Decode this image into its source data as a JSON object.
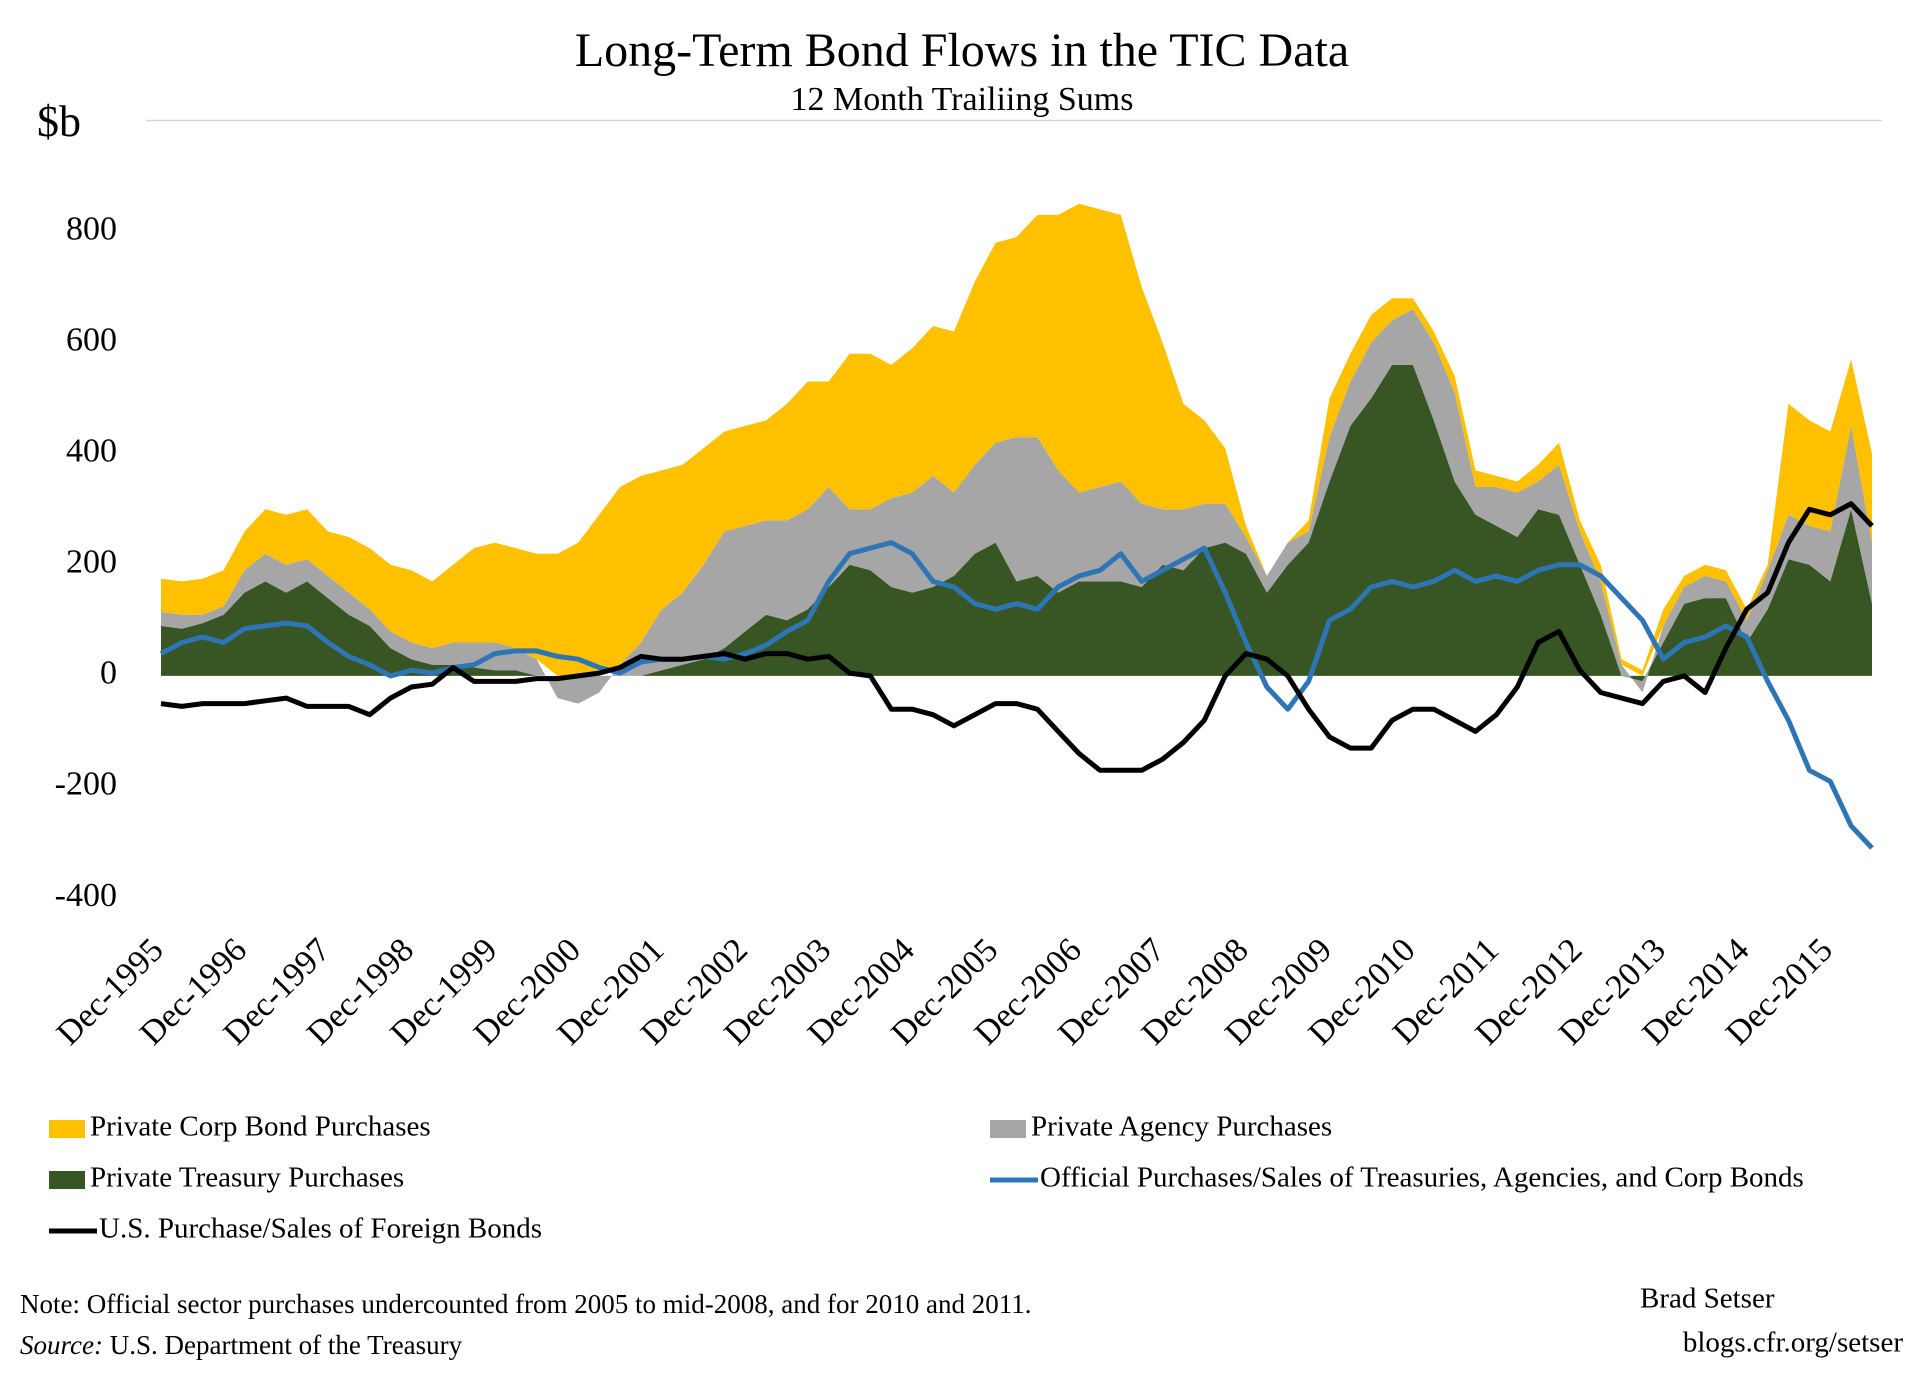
{
  "chart_data": {
    "type": "area",
    "title": "Long-Term Bond Flows in the TIC Data",
    "subtitle": "12 Month Trailiing Sums",
    "y_label": "$b",
    "categories": [
      "Dec-1995",
      null,
      null,
      null,
      "Dec-1996",
      null,
      null,
      null,
      "Dec-1997",
      null,
      null,
      null,
      "Dec-1998",
      null,
      null,
      null,
      "Dec-1999",
      null,
      null,
      null,
      "Dec-2000",
      null,
      null,
      null,
      "Dec-2001",
      null,
      null,
      null,
      "Dec-2002",
      null,
      null,
      null,
      "Dec-2003",
      null,
      null,
      null,
      "Dec-2004",
      null,
      null,
      null,
      "Dec-2005",
      null,
      null,
      null,
      "Dec-2006",
      null,
      null,
      null,
      "Dec-2007",
      null,
      null,
      null,
      "Dec-2008",
      null,
      null,
      null,
      "Dec-2009",
      null,
      null,
      null,
      "Dec-2010",
      null,
      null,
      null,
      "Dec-2011",
      null,
      null,
      null,
      "Dec-2012",
      null,
      null,
      null,
      "Dec-2013",
      null,
      null,
      null,
      "Dec-2014",
      null,
      null,
      null,
      "Dec-2015",
      null,
      null
    ],
    "series": [
      {
        "name": "Private Corp Bond Purchases",
        "color": "#FFC000",
        "mark": "area",
        "values": [
          60,
          60,
          65,
          65,
          70,
          80,
          90,
          90,
          80,
          100,
          110,
          120,
          130,
          120,
          140,
          170,
          180,
          180,
          190,
          220,
          240,
          290,
          320,
          300,
          250,
          230,
          210,
          180,
          180,
          180,
          210,
          230,
          190,
          280,
          280,
          240,
          260,
          270,
          290,
          330,
          360,
          360,
          400,
          460,
          520,
          500,
          480,
          390,
          300,
          190,
          150,
          100,
          20,
          0,
          0,
          20,
          70,
          50,
          50,
          40,
          20,
          20,
          30,
          30,
          20,
          20,
          30,
          40,
          20,
          30,
          10,
          10,
          30,
          20,
          20,
          20,
          20,
          10,
          200,
          190,
          180,
          120,
          160
        ]
      },
      {
        "name": "Private Agency Purchases",
        "color": "#A6A6A6",
        "mark": "area",
        "values": [
          25,
          25,
          15,
          15,
          40,
          50,
          50,
          40,
          40,
          40,
          30,
          30,
          30,
          30,
          40,
          45,
          50,
          40,
          30,
          -40,
          -50,
          -30,
          20,
          60,
          110,
          130,
          170,
          210,
          190,
          170,
          180,
          180,
          180,
          100,
          110,
          160,
          180,
          200,
          150,
          160,
          180,
          260,
          250,
          220,
          160,
          170,
          180,
          150,
          100,
          110,
          80,
          70,
          30,
          30,
          40,
          20,
          80,
          80,
          100,
          80,
          100,
          140,
          160,
          50,
          70,
          80,
          50,
          90,
          60,
          60,
          20,
          -20,
          30,
          30,
          40,
          30,
          40,
          70,
          80,
          70,
          90,
          150,
          110
        ]
      },
      {
        "name": "Private Treasury Purchases",
        "color": "#375623",
        "mark": "area",
        "values": [
          90,
          85,
          95,
          110,
          150,
          170,
          150,
          170,
          140,
          110,
          90,
          50,
          30,
          20,
          20,
          15,
          10,
          10,
          0,
          0,
          0,
          0,
          0,
          0,
          10,
          20,
          30,
          50,
          80,
          110,
          100,
          120,
          160,
          200,
          190,
          160,
          150,
          160,
          180,
          220,
          240,
          170,
          180,
          150,
          170,
          170,
          170,
          160,
          200,
          190,
          230,
          240,
          220,
          150,
          200,
          240,
          350,
          450,
          500,
          560,
          560,
          460,
          350,
          290,
          270,
          250,
          300,
          290,
          200,
          110,
          0,
          -10,
          60,
          130,
          140,
          140,
          60,
          120,
          210,
          200,
          170,
          300,
          130
        ]
      },
      {
        "name": "Official Purchases/Sales of Treasuries, Agencies, and Corp Bonds",
        "color": "#2E75B6",
        "mark": "line",
        "values": [
          40,
          60,
          70,
          60,
          85,
          90,
          95,
          90,
          60,
          35,
          20,
          0,
          10,
          5,
          15,
          20,
          40,
          45,
          45,
          35,
          30,
          15,
          5,
          25,
          30,
          30,
          35,
          30,
          40,
          55,
          80,
          100,
          170,
          220,
          230,
          240,
          220,
          170,
          160,
          130,
          120,
          130,
          120,
          160,
          180,
          190,
          220,
          170,
          190,
          210,
          230,
          150,
          60,
          -20,
          -60,
          -10,
          100,
          120,
          160,
          170,
          160,
          170,
          190,
          170,
          180,
          170,
          190,
          200,
          200,
          180,
          140,
          100,
          30,
          60,
          70,
          90,
          70,
          -10,
          -80,
          -170,
          -190,
          -270,
          -310
        ]
      },
      {
        "name": "U.S. Purchase/Sales of Foreign Bonds",
        "color": "#000000",
        "mark": "line",
        "values": [
          -50,
          -55,
          -50,
          -50,
          -50,
          -45,
          -40,
          -55,
          -55,
          -55,
          -70,
          -40,
          -20,
          -15,
          15,
          -10,
          -10,
          -10,
          -5,
          -5,
          0,
          5,
          15,
          35,
          30,
          30,
          35,
          40,
          30,
          40,
          40,
          30,
          35,
          5,
          0,
          -60,
          -60,
          -70,
          -90,
          -70,
          -50,
          -50,
          -60,
          -100,
          -140,
          -170,
          -170,
          -170,
          -150,
          -120,
          -80,
          0,
          40,
          30,
          0,
          -60,
          -110,
          -130,
          -130,
          -80,
          -60,
          -60,
          -80,
          -100,
          -70,
          -20,
          60,
          80,
          10,
          -30,
          -40,
          -50,
          -10,
          0,
          -30,
          50,
          120,
          150,
          240,
          300,
          290,
          310,
          270
        ]
      }
    ],
    "ylim": [
      -400,
      1000
    ],
    "yticks": [
      -400,
      -200,
      0,
      200,
      400,
      600,
      800
    ],
    "grid": false,
    "legend": "bottom",
    "note": "Note: Official sector purchases undercounted from 2005 to mid-2008, and for 2010 and 2011.",
    "source": {
      "label": "Source:",
      "text": "U.S. Department of the Treasury"
    },
    "credit": [
      "Brad Setser",
      "blogs.cfr.org/setser"
    ]
  }
}
